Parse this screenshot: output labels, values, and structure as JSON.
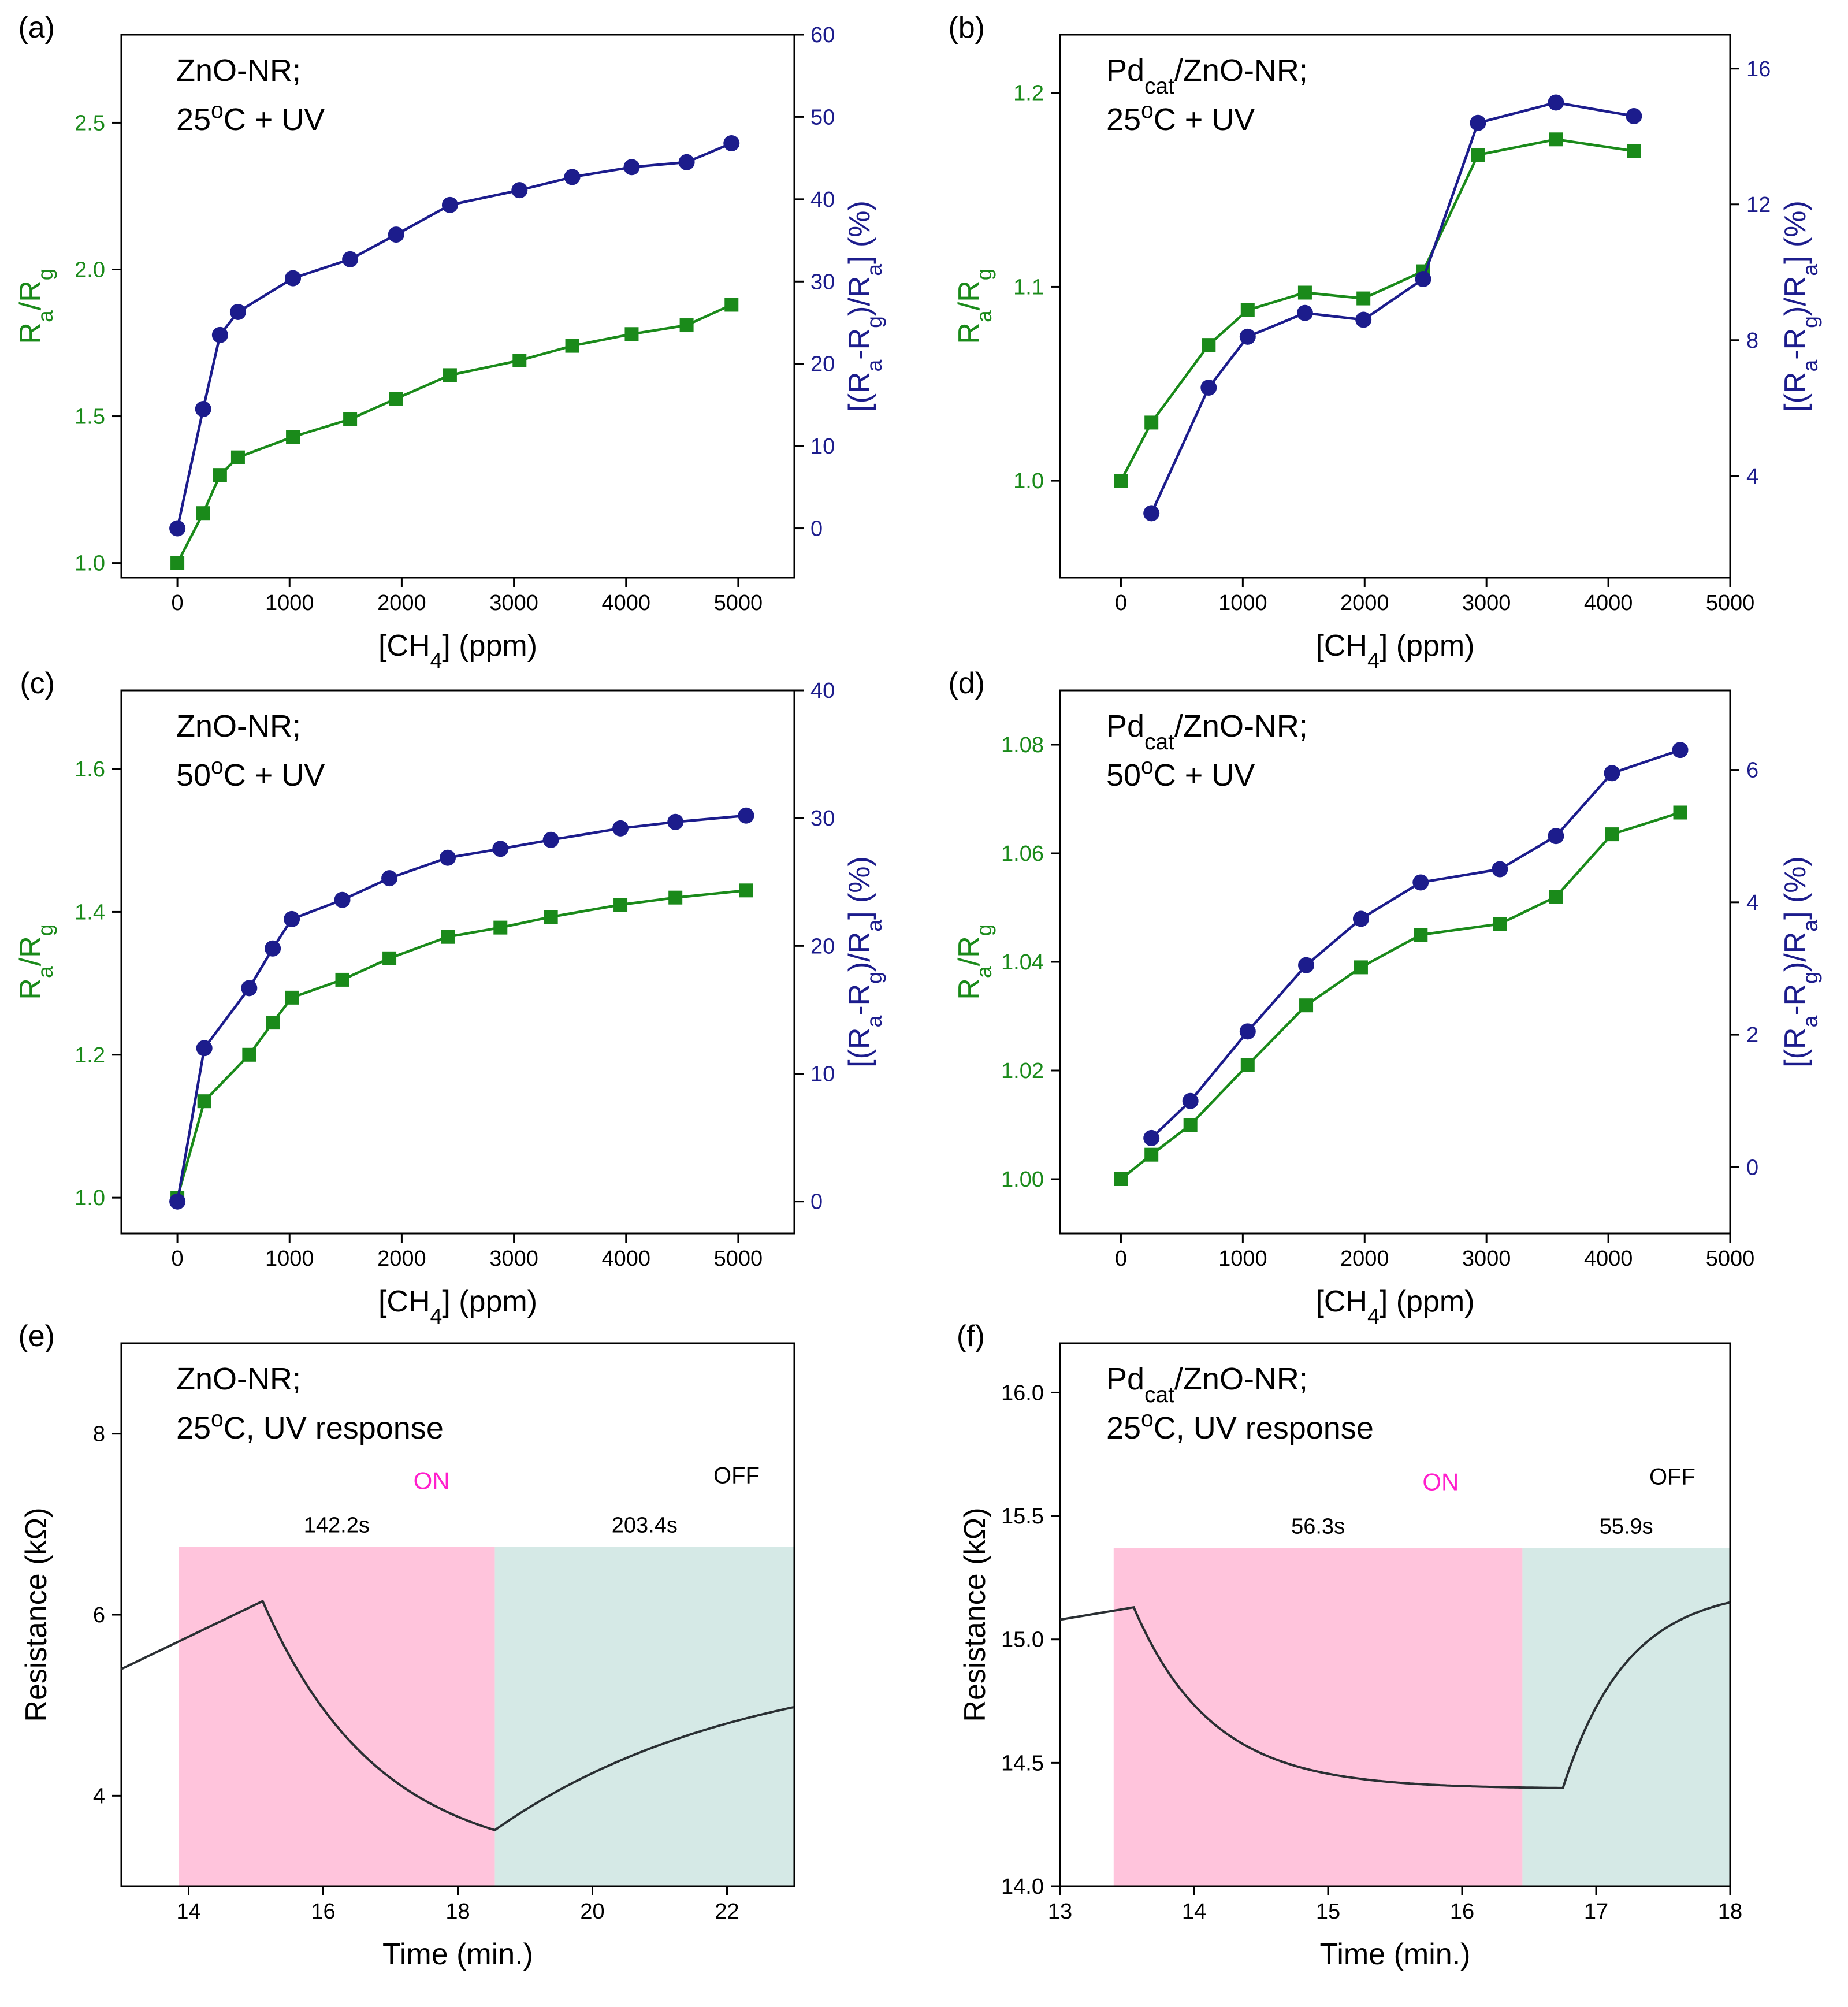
{
  "colors": {
    "green": "#1a8a1a",
    "navy": "#1c1c8c",
    "on_fill": "#ffc4dc",
    "off_fill": "#d5e9e6",
    "on_text": "#ff1fcc",
    "trace": "#2a2f33",
    "axis": "#000000"
  },
  "chart_data": [
    {
      "panel": "(a)",
      "type": "line",
      "material": "ZnO-NR;",
      "condition": "25°C + UV",
      "xlabel": "[CH4] (ppm)",
      "ylabel": "Ra/Rg",
      "y2label": "[(Ra-Rg)/Ra] (%)",
      "xlim": [
        -500,
        5500
      ],
      "xticks": [
        0,
        1000,
        2000,
        3000,
        4000,
        5000
      ],
      "ylim": [
        0.95,
        2.8
      ],
      "yticks": [
        1.0,
        1.5,
        2.0,
        2.5
      ],
      "ytick_labels": [
        "1.0",
        "1.5",
        "2.0",
        "2.5"
      ],
      "y2lim": [
        -6,
        60
      ],
      "y2ticks": [
        0,
        10,
        20,
        30,
        40,
        50,
        60
      ],
      "y2tick_labels": [
        "0",
        "10",
        "20",
        "30",
        "40",
        "50",
        "60"
      ],
      "series": [
        {
          "name": "Ra/Rg",
          "axis": "left",
          "marker": "square",
          "x": [
            0,
            230,
            380,
            540,
            1030,
            1540,
            1950,
            2430,
            3050,
            3520,
            4050,
            4540,
            4940
          ],
          "y": [
            1.0,
            1.17,
            1.3,
            1.36,
            1.43,
            1.49,
            1.56,
            1.64,
            1.69,
            1.74,
            1.78,
            1.81,
            1.88
          ]
        },
        {
          "name": "Response",
          "axis": "right",
          "marker": "circle",
          "x": [
            0,
            230,
            380,
            540,
            1030,
            1540,
            1950,
            2430,
            3050,
            3520,
            4050,
            4540,
            4940
          ],
          "y": [
            0,
            14.5,
            23.5,
            26.3,
            30.4,
            32.7,
            35.7,
            39.3,
            41.1,
            42.7,
            43.9,
            44.5,
            46.8
          ]
        }
      ]
    },
    {
      "panel": "(b)",
      "type": "line",
      "material": "Pdcat/ZnO-NR;",
      "condition": "25°C + UV",
      "xlabel": "[CH4] (ppm)",
      "ylabel": "Ra/Rg",
      "y2label": "[(Ra-Rg)/Ra] (%)",
      "xlim": [
        -500,
        5000
      ],
      "xticks": [
        0,
        1000,
        2000,
        3000,
        4000,
        5000
      ],
      "ylim": [
        0.95,
        1.23
      ],
      "yticks": [
        1.0,
        1.1,
        1.2
      ],
      "ytick_labels": [
        "1.0",
        "1.1",
        "1.2"
      ],
      "y2lim": [
        1,
        17
      ],
      "y2ticks": [
        4,
        8,
        12,
        16
      ],
      "y2tick_labels": [
        "4",
        "8",
        "12",
        "16"
      ],
      "series": [
        {
          "name": "Ra/Rg",
          "axis": "left",
          "marker": "square",
          "x": [
            0,
            250,
            720,
            1040,
            1510,
            1990,
            2480,
            2930,
            3570,
            4210
          ],
          "y": [
            1.0,
            1.03,
            1.07,
            1.088,
            1.097,
            1.094,
            1.108,
            1.168,
            1.176,
            1.17
          ]
        },
        {
          "name": "Response",
          "axis": "right",
          "marker": "circle",
          "x": [
            250,
            720,
            1040,
            1510,
            1990,
            2480,
            2930,
            3570,
            4210
          ],
          "y": [
            2.9,
            6.6,
            8.1,
            8.8,
            8.6,
            9.8,
            14.4,
            15.0,
            14.6
          ]
        }
      ]
    },
    {
      "panel": "(c)",
      "type": "line",
      "material": "ZnO-NR;",
      "condition": "50°C + UV",
      "xlabel": "[CH4] (ppm)",
      "ylabel": "Ra/Rg",
      "y2label": "[(Ra-Rg)/Ra] (%)",
      "xlim": [
        -500,
        5500
      ],
      "xticks": [
        0,
        1000,
        2000,
        3000,
        4000,
        5000
      ],
      "ylim": [
        0.95,
        1.71
      ],
      "yticks": [
        1.0,
        1.2,
        1.4,
        1.6
      ],
      "ytick_labels": [
        "1.0",
        "1.2",
        "1.4",
        "1.6"
      ],
      "y2lim": [
        -2.5,
        40
      ],
      "y2ticks": [
        0,
        10,
        20,
        30,
        40
      ],
      "y2tick_labels": [
        "0",
        "10",
        "20",
        "30",
        "40"
      ],
      "series": [
        {
          "name": "Ra/Rg",
          "axis": "left",
          "marker": "square",
          "x": [
            0,
            240,
            640,
            850,
            1020,
            1470,
            1890,
            2410,
            2880,
            3330,
            3950,
            4440,
            5070
          ],
          "y": [
            1.0,
            1.135,
            1.2,
            1.245,
            1.28,
            1.305,
            1.335,
            1.365,
            1.378,
            1.393,
            1.41,
            1.42,
            1.43
          ]
        },
        {
          "name": "Response",
          "axis": "right",
          "marker": "circle",
          "x": [
            0,
            240,
            640,
            850,
            1020,
            1470,
            1890,
            2410,
            2880,
            3330,
            3950,
            4440,
            5070
          ],
          "y": [
            0,
            12,
            16.7,
            19.8,
            22.1,
            23.6,
            25.3,
            26.9,
            27.6,
            28.3,
            29.2,
            29.7,
            30.2
          ]
        }
      ]
    },
    {
      "panel": "(d)",
      "type": "line",
      "material": "Pdcat/ZnO-NR;",
      "condition": "50°C + UV",
      "xlabel": "[CH4] (ppm)",
      "ylabel": "Ra/Rg",
      "y2label": "[(Ra-Rg)/Ra] (%)",
      "xlim": [
        -500,
        5000
      ],
      "xticks": [
        0,
        1000,
        2000,
        3000,
        4000,
        5000
      ],
      "ylim": [
        0.99,
        1.09
      ],
      "yticks": [
        1.0,
        1.02,
        1.04,
        1.06,
        1.08
      ],
      "ytick_labels": [
        "1.00",
        "1.02",
        "1.04",
        "1.06",
        "1.08"
      ],
      "y2lim": [
        -1,
        7.2
      ],
      "y2ticks": [
        0,
        2,
        4,
        6
      ],
      "y2tick_labels": [
        "0",
        "2",
        "4",
        "6"
      ],
      "series": [
        {
          "name": "Ra/Rg",
          "axis": "left",
          "marker": "square",
          "x": [
            0,
            250,
            570,
            1040,
            1520,
            1970,
            2460,
            3110,
            3570,
            4030,
            4590
          ],
          "y": [
            1.0,
            1.0045,
            1.01,
            1.021,
            1.032,
            1.039,
            1.045,
            1.047,
            1.052,
            1.0635,
            1.0675
          ]
        },
        {
          "name": "Response",
          "axis": "right",
          "marker": "circle",
          "x": [
            250,
            570,
            1040,
            1520,
            1970,
            2460,
            3110,
            3570,
            4030,
            4590
          ],
          "y": [
            0.44,
            1.0,
            2.05,
            3.05,
            3.75,
            4.3,
            4.5,
            5.0,
            5.95,
            6.3
          ]
        }
      ]
    },
    {
      "panel": "(e)",
      "type": "line",
      "material": "ZnO-NR;",
      "condition": "25°C, UV response",
      "xlabel": "Time (min.)",
      "ylabel": "Resistance (kΩ)",
      "xlim": [
        13,
        23
      ],
      "xticks": [
        14,
        16,
        18,
        20,
        22
      ],
      "ylim": [
        3,
        9
      ],
      "yticks": [
        4,
        6,
        8
      ],
      "ytick_labels": [
        "4",
        "6",
        "8"
      ],
      "on_label": "ON",
      "off_label": "OFF",
      "on_region": [
        13.85,
        18.55
      ],
      "off_region": [
        18.55,
        23
      ],
      "shade_top": 6.75,
      "on_time": "142.2s",
      "off_time": "203.4s",
      "series": [
        {
          "name": "Resistance",
          "curve": "e",
          "x_start": 13,
          "x_on": 15.1,
          "x_off": 18.55,
          "x_end": 23,
          "y_start": 5.4,
          "y_peak": 6.15,
          "y_min": 3.62,
          "y_end": 4.98
        }
      ]
    },
    {
      "panel": "(f)",
      "type": "line",
      "material": "Pdcat/ZnO-NR;",
      "condition": "25°C, UV response",
      "xlabel": "Time (min.)",
      "ylabel": "Resistance (kΩ)",
      "xlim": [
        13,
        18
      ],
      "xticks": [
        13,
        14,
        15,
        16,
        17,
        18
      ],
      "ylim": [
        14.0,
        16.2
      ],
      "yticks": [
        14.0,
        14.5,
        15.0,
        15.5,
        16.0
      ],
      "ytick_labels": [
        "14.0",
        "14.5",
        "15.0",
        "15.5",
        "16.0"
      ],
      "on_label": "ON",
      "off_label": "OFF",
      "on_region": [
        13.4,
        16.45
      ],
      "off_region": [
        16.45,
        18
      ],
      "shade_top": 15.37,
      "on_time": "56.3s",
      "off_time": "55.9s",
      "series": [
        {
          "name": "Resistance",
          "curve": "f",
          "x_start": 13,
          "x_on": 13.55,
          "x_flat": 16.75,
          "x_end": 18,
          "y_start": 15.08,
          "y_peak": 15.13,
          "y_min": 14.395,
          "y_end": 15.15
        }
      ]
    }
  ]
}
